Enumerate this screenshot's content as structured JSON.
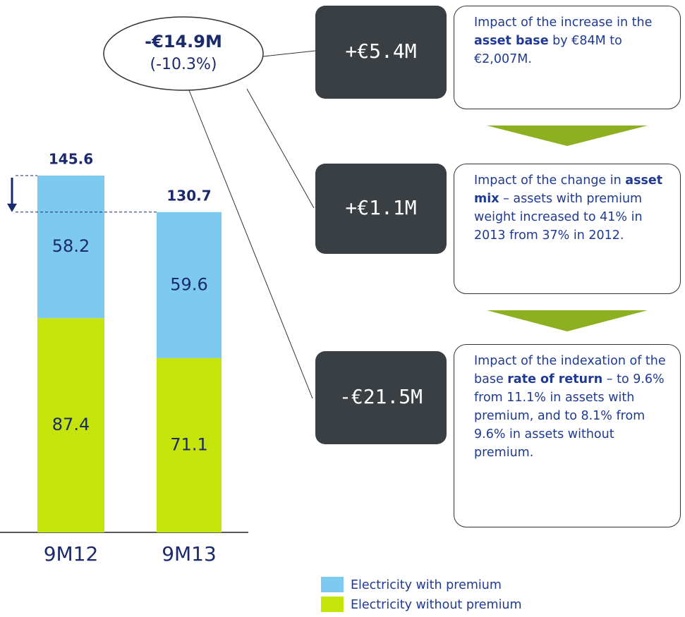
{
  "chart_data": {
    "type": "stacked-bar",
    "categories": [
      "9M12",
      "9M13"
    ],
    "series": [
      {
        "name": "Electricity without premium",
        "color": "#c5e40a",
        "values": [
          87.4,
          71.1
        ]
      },
      {
        "name": "Electricity with premium",
        "color": "#7ccaf0",
        "values": [
          58.2,
          59.6
        ]
      }
    ],
    "totals": [
      145.6,
      130.7
    ]
  },
  "change": {
    "amount": "-€14.9M",
    "percent": "(-10.3%)"
  },
  "drivers": [
    {
      "impact": "+€5.4M",
      "description": [
        {
          "text": "Impact of the increase in the ",
          "bold": false
        },
        {
          "text": "asset base",
          "bold": true
        },
        {
          "text": " by €84M to €2,007M.",
          "bold": false
        }
      ]
    },
    {
      "impact": "+€1.1M",
      "description": [
        {
          "text": "Impact of the change in ",
          "bold": false
        },
        {
          "text": "asset mix",
          "bold": true
        },
        {
          "text": " – assets with premium weight increased to 41% in 2013 from 37% in 2012.",
          "bold": false
        }
      ]
    },
    {
      "impact": "-€21.5M",
      "description": [
        {
          "text": "Impact of the indexation of the base ",
          "bold": false
        },
        {
          "text": "rate of return",
          "bold": true
        },
        {
          "text": " – to 9.6% from 11.1% in assets with premium, and to 8.1% from 9.6% in assets without premium.",
          "bold": false
        }
      ]
    }
  ]
}
